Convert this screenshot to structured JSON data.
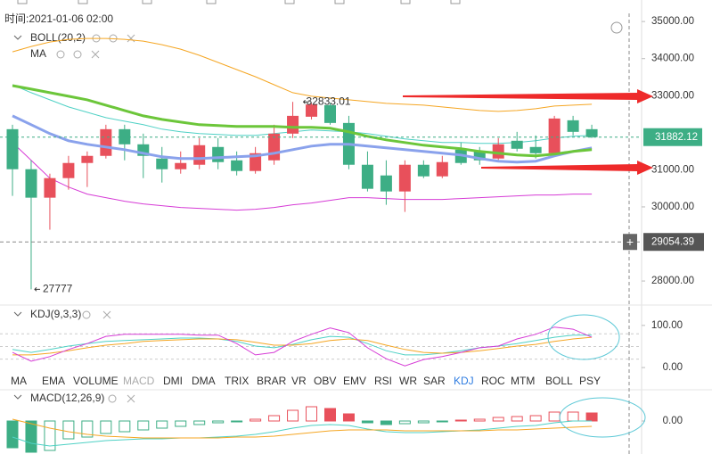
{
  "header": {
    "time_label": "时间:2021-01-06 02:00"
  },
  "price_pane": {
    "type": "candlestick",
    "indicator_labels": [
      "BOLL(20,2)",
      "MA"
    ],
    "ylim": [
      27400,
      35220
    ],
    "yticks": [
      {
        "value": 35000,
        "label": "35000.00"
      },
      {
        "value": 34000,
        "label": "34000.00"
      },
      {
        "value": 33000,
        "label": "33000.00"
      },
      {
        "value": 31000,
        "label": "31000.00"
      },
      {
        "value": 30000,
        "label": "30000.00"
      },
      {
        "value": 28000,
        "label": "28000.00"
      }
    ],
    "up_color": "#e8505b",
    "down_color": "#3dae85",
    "candles": {
      "open": [
        32096,
        31016,
        30248,
        30776,
        31184,
        31376,
        32096,
        31688,
        31304,
        31016,
        31136,
        31616,
        31256,
        30968,
        31256,
        31976,
        32432,
        32744,
        32264,
        31136,
        30848,
        30416,
        31136,
        30824,
        31544,
        31496,
        31304,
        31784,
        31616,
        31448,
        32336,
        32096
      ],
      "high": [
        32216,
        31256,
        30896,
        31376,
        31496,
        32216,
        32216,
        31976,
        31616,
        31496,
        31856,
        31856,
        31496,
        31616,
        32216,
        32833.01,
        32800,
        32800,
        32456,
        31496,
        31256,
        31256,
        31256,
        31376,
        31736,
        31616,
        31856,
        32024,
        31928,
        32456,
        32456,
        32216
      ],
      "low": [
        30296,
        27777,
        29384,
        30464,
        30536,
        31304,
        31256,
        30776,
        30656,
        30896,
        31016,
        31016,
        30848,
        30896,
        31136,
        31856,
        32360,
        32216,
        31016,
        30416,
        30056,
        29864,
        30776,
        30776,
        31136,
        31136,
        31256,
        31496,
        31304,
        31376,
        31928,
        31856
      ],
      "close": [
        31016,
        30248,
        30776,
        31184,
        31376,
        32096,
        31688,
        31376,
        31016,
        31184,
        31664,
        31208,
        30968,
        31448,
        31976,
        32456,
        32760,
        32264,
        31136,
        30488,
        30416,
        31136,
        30824,
        31208,
        31184,
        31256,
        31688,
        31568,
        31448,
        32384,
        32024,
        31882.12
      ]
    },
    "boll": {
      "upper": [
        34184,
        34328,
        34448,
        34520,
        34544,
        34544,
        34520,
        34472,
        34376,
        34256,
        34088,
        33896,
        33704,
        33512,
        33296,
        33080,
        32984,
        32936,
        32888,
        32840,
        32792,
        32768,
        32744,
        32696,
        32648,
        32600,
        32576,
        32600,
        32648,
        32720,
        32744,
        32768
      ],
      "mid": [
        33296,
        33080,
        32888,
        32696,
        32552,
        32408,
        32312,
        32216,
        32096,
        32024,
        31976,
        31952,
        31928,
        31928,
        31976,
        32024,
        32072,
        32048,
        32024,
        31976,
        31904,
        31832,
        31784,
        31736,
        31736,
        31712,
        31712,
        31736,
        31784,
        31856,
        31904,
        31928
      ],
      "lower": [
        31736,
        31256,
        30776,
        30536,
        30344,
        30248,
        30152,
        30080,
        30032,
        29984,
        29960,
        29936,
        29912,
        29936,
        29984,
        30056,
        30104,
        30176,
        30248,
        30248,
        30224,
        30200,
        30200,
        30200,
        30224,
        30248,
        30272,
        30296,
        30320,
        30320,
        30344,
        30344
      ],
      "colors": [
        "#f5a623",
        "#4fd1c5",
        "#d63bd6"
      ]
    },
    "ma": {
      "fast": [
        32456,
        32216,
        31976,
        31784,
        31688,
        31616,
        31544,
        31448,
        31352,
        31304,
        31304,
        31328,
        31352,
        31376,
        31448,
        31544,
        31640,
        31688,
        31688,
        31640,
        31592,
        31544,
        31496,
        31448,
        31400,
        31304,
        31232,
        31208,
        31232,
        31376,
        31496,
        31592
      ],
      "slow": [
        33272,
        33176,
        33080,
        32984,
        32888,
        32744,
        32600,
        32456,
        32360,
        32288,
        32216,
        32192,
        32168,
        32168,
        32168,
        32144,
        32144,
        32120,
        32024,
        31904,
        31808,
        31736,
        31664,
        31616,
        31568,
        31496,
        31448,
        31400,
        31376,
        31424,
        31496,
        31544
      ],
      "colors": [
        "#8aa2ec",
        "#6cc63a"
      ]
    },
    "crosshair_price": 29054.39
  },
  "kdj_pane": {
    "label": "KDJ(9,3,3)",
    "ylim": [
      -21,
      142
    ],
    "yticks": [
      {
        "value": 100,
        "label": "100.00"
      },
      {
        "value": 0,
        "label": "0.00"
      }
    ],
    "levels": [
      80,
      50,
      20
    ],
    "k": [
      43,
      36,
      43,
      51,
      57,
      62,
      64,
      66,
      68,
      70,
      70,
      68,
      62,
      51,
      47,
      55,
      66,
      74,
      72,
      57,
      40,
      30,
      30,
      34,
      40,
      47,
      51,
      57,
      64,
      72,
      77,
      77
    ],
    "d": [
      30,
      30,
      34,
      40,
      47,
      53,
      57,
      62,
      64,
      66,
      68,
      68,
      66,
      60,
      53,
      53,
      57,
      64,
      68,
      64,
      53,
      43,
      36,
      34,
      36,
      40,
      45,
      51,
      55,
      62,
      68,
      72
    ],
    "j": [
      36,
      15,
      26,
      43,
      57,
      74,
      79,
      79,
      79,
      79,
      77,
      77,
      57,
      30,
      36,
      62,
      79,
      94,
      83,
      47,
      21,
      4,
      19,
      26,
      36,
      47,
      51,
      68,
      79,
      96,
      91,
      72
    ],
    "colors": [
      "#4fd1c5",
      "#f5a623",
      "#d63bd6"
    ]
  },
  "indicator_tabs": {
    "names": [
      "MA",
      "EMA",
      "VOLUME",
      "MACD",
      "DMI",
      "DMA",
      "TRIX",
      "BRAR",
      "VR",
      "OBV",
      "EMV",
      "RSI",
      "WR",
      "SAR",
      "KDJ",
      "ROC",
      "MTM",
      "BOLL",
      "PSY"
    ],
    "active": 14,
    "disabled": 3
  },
  "macd_pane": {
    "label": "MACD(12,26,9)",
    "ylim": [
      -740,
      640
    ],
    "yticks": [
      {
        "value": 0,
        "label": "0.00"
      }
    ],
    "histogram": [
      -600,
      -700,
      -660,
      -400,
      -360,
      -280,
      -240,
      -200,
      -160,
      -120,
      -80,
      -40,
      -20,
      40,
      120,
      240,
      320,
      280,
      160,
      -40,
      -80,
      -60,
      -40,
      -20,
      20,
      40,
      80,
      100,
      120,
      200,
      200,
      180
    ],
    "dif": [
      -360,
      -500,
      -560,
      -520,
      -480,
      -440,
      -420,
      -400,
      -400,
      -380,
      -380,
      -360,
      -340,
      -300,
      -240,
      -160,
      -100,
      -80,
      -100,
      -180,
      -240,
      -260,
      -260,
      -240,
      -220,
      -200,
      -160,
      -120,
      -100,
      -40,
      0,
      0
    ],
    "dea": [
      40,
      -60,
      -160,
      -240,
      -300,
      -340,
      -360,
      -380,
      -380,
      -380,
      -380,
      -380,
      -360,
      -360,
      -340,
      -300,
      -260,
      -220,
      -200,
      -200,
      -200,
      -220,
      -220,
      -220,
      -220,
      -220,
      -200,
      -200,
      -180,
      -160,
      -140,
      -120
    ],
    "colors": [
      "#4fd1c5",
      "#f5a623"
    ]
  }
}
